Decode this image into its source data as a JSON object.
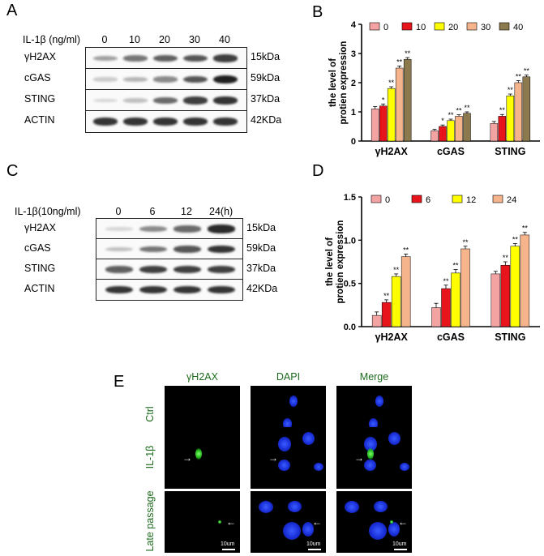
{
  "panels": {
    "A": {
      "letter": "A",
      "condition_label": "IL-1β  (ng/ml)",
      "lanes": [
        "0",
        "10",
        "20",
        "30",
        "40"
      ],
      "proteins": [
        {
          "name": "γH2AX",
          "size": "15kDa",
          "intensity": [
            0.35,
            0.55,
            0.65,
            0.7,
            0.8
          ]
        },
        {
          "name": "cGAS",
          "size": "59kDa",
          "intensity": [
            0.15,
            0.25,
            0.45,
            0.7,
            0.95
          ]
        },
        {
          "name": "STING",
          "size": "37kDa",
          "intensity": [
            0.1,
            0.2,
            0.6,
            0.8,
            0.85
          ]
        },
        {
          "name": "ACTIN",
          "size": "42KDa",
          "intensity": [
            0.85,
            0.85,
            0.85,
            0.85,
            0.85
          ]
        }
      ]
    },
    "C": {
      "letter": "C",
      "condition_label": "IL-1β(10ng/ml)",
      "lanes": [
        "0",
        "6",
        "12",
        "24(h)"
      ],
      "proteins": [
        {
          "name": "γH2AX",
          "size": "15kDa",
          "intensity": [
            0.1,
            0.45,
            0.6,
            0.9
          ]
        },
        {
          "name": "cGAS",
          "size": "59kDa",
          "intensity": [
            0.2,
            0.55,
            0.7,
            0.85
          ]
        },
        {
          "name": "STING",
          "size": "37kDa",
          "intensity": [
            0.65,
            0.8,
            0.8,
            0.8
          ]
        },
        {
          "name": "ACTIN",
          "size": "42KDa",
          "intensity": [
            0.85,
            0.85,
            0.85,
            0.85
          ]
        }
      ]
    },
    "E": {
      "letter": "E",
      "columns": [
        "γH2AX",
        "DAPI",
        "Merge"
      ],
      "rows": [
        "Ctrl",
        "IL-1β",
        "Late passage"
      ],
      "scale_bar": "10um"
    }
  },
  "chart_data": [
    {
      "panel": "B",
      "type": "bar",
      "ylabel": "the level of protien expression",
      "ylim": [
        0,
        4
      ],
      "yticks": [
        0,
        1,
        2,
        3,
        4
      ],
      "categories": [
        "γH2AX",
        "cGAS",
        "STING"
      ],
      "series": [
        {
          "name": "0",
          "color": "#f4a3a3",
          "values": [
            1.1,
            0.35,
            0.6
          ],
          "errors": [
            0.08,
            0.05,
            0.07
          ],
          "sig": [
            "",
            "",
            ""
          ]
        },
        {
          "name": "10",
          "color": "#e8141c",
          "values": [
            1.2,
            0.5,
            0.85
          ],
          "errors": [
            0.07,
            0.05,
            0.06
          ],
          "sig": [
            "*",
            "*",
            "**"
          ]
        },
        {
          "name": "20",
          "color": "#ffff00",
          "values": [
            1.8,
            0.7,
            1.55
          ],
          "errors": [
            0.06,
            0.05,
            0.06
          ],
          "sig": [
            "**",
            "**",
            "**"
          ]
        },
        {
          "name": "30",
          "color": "#f5b48c",
          "values": [
            2.5,
            0.85,
            2.0
          ],
          "errors": [
            0.07,
            0.05,
            0.07
          ],
          "sig": [
            "**",
            "**",
            "**"
          ]
        },
        {
          "name": "40",
          "color": "#8c7a4e",
          "values": [
            2.8,
            0.95,
            2.2
          ],
          "errors": [
            0.06,
            0.05,
            0.06
          ],
          "sig": [
            "**",
            "**",
            "**"
          ]
        }
      ]
    },
    {
      "panel": "D",
      "type": "bar",
      "ylabel": "the level of protien expression",
      "ylim": [
        0,
        1.5
      ],
      "yticks": [
        0.0,
        0.5,
        1.0,
        1.5
      ],
      "categories": [
        "γH2AX",
        "cGAS",
        "STING"
      ],
      "series": [
        {
          "name": "0",
          "color": "#f4a3a3",
          "values": [
            0.13,
            0.22,
            0.61
          ],
          "errors": [
            0.04,
            0.05,
            0.03
          ],
          "sig": [
            "",
            "",
            ""
          ]
        },
        {
          "name": "6",
          "color": "#e8141c",
          "values": [
            0.28,
            0.44,
            0.71
          ],
          "errors": [
            0.03,
            0.04,
            0.04
          ],
          "sig": [
            "**",
            "**",
            "**"
          ]
        },
        {
          "name": "12",
          "color": "#ffff00",
          "values": [
            0.58,
            0.62,
            0.93
          ],
          "errors": [
            0.03,
            0.04,
            0.03
          ],
          "sig": [
            "**",
            "**",
            "**"
          ]
        },
        {
          "name": "24",
          "color": "#f5b48c",
          "values": [
            0.81,
            0.9,
            1.06
          ],
          "errors": [
            0.03,
            0.03,
            0.03
          ],
          "sig": [
            "**",
            "**",
            "**"
          ]
        }
      ]
    }
  ]
}
